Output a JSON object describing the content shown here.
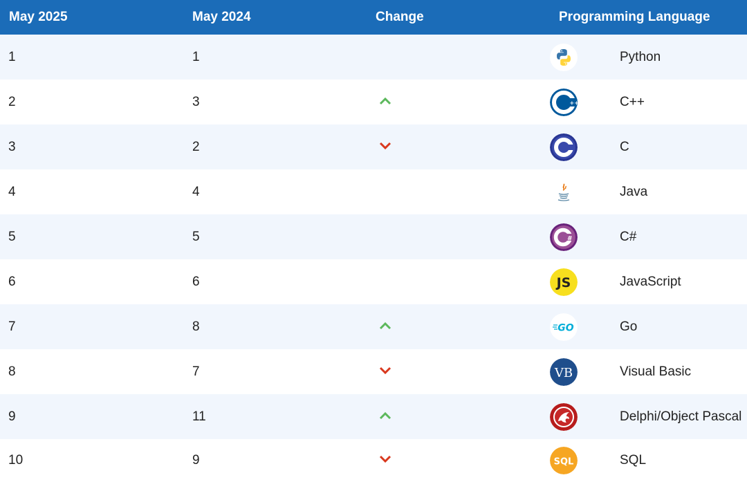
{
  "header": {
    "col1": "May 2025",
    "col2": "May 2024",
    "col3": "Change",
    "col4": "Programming Language"
  },
  "rows": [
    {
      "may2025": "1",
      "may2024": "1",
      "change": "none",
      "language": "Python",
      "icon": "python-logo-icon"
    },
    {
      "may2025": "2",
      "may2024": "3",
      "change": "up",
      "language": "C++",
      "icon": "cpp-logo-icon"
    },
    {
      "may2025": "3",
      "may2024": "2",
      "change": "down",
      "language": "C",
      "icon": "c-logo-icon"
    },
    {
      "may2025": "4",
      "may2024": "4",
      "change": "none",
      "language": "Java",
      "icon": "java-logo-icon"
    },
    {
      "may2025": "5",
      "may2024": "5",
      "change": "none",
      "language": "C#",
      "icon": "csharp-logo-icon"
    },
    {
      "may2025": "6",
      "may2024": "6",
      "change": "none",
      "language": "JavaScript",
      "icon": "javascript-logo-icon"
    },
    {
      "may2025": "7",
      "may2024": "8",
      "change": "up",
      "language": "Go",
      "icon": "go-logo-icon"
    },
    {
      "may2025": "8",
      "may2024": "7",
      "change": "down",
      "language": "Visual Basic",
      "icon": "visual-basic-logo-icon"
    },
    {
      "may2025": "9",
      "may2024": "11",
      "change": "up",
      "language": "Delphi/Object Pascal",
      "icon": "delphi-logo-icon"
    },
    {
      "may2025": "10",
      "may2024": "9",
      "change": "down",
      "language": "SQL",
      "icon": "sql-logo-icon"
    }
  ],
  "colors": {
    "header_bg": "#1b6cb8",
    "row_alt_bg": "#f1f6fd",
    "up_arrow": "#5cb85c",
    "down_arrow": "#d9381e"
  }
}
